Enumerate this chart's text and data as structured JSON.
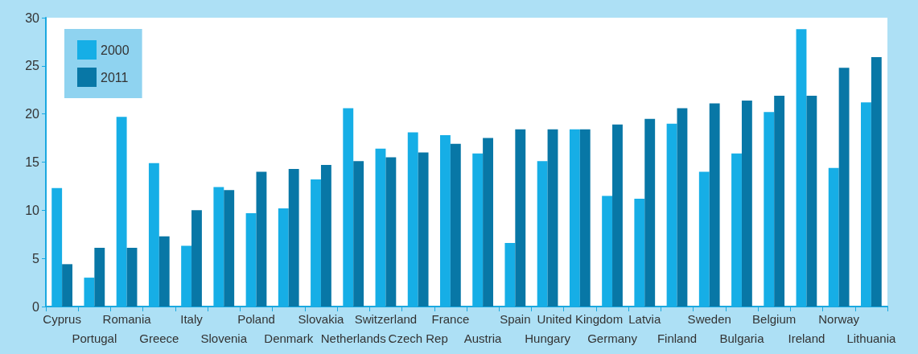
{
  "chart_data": {
    "type": "bar",
    "categories": [
      "Cyprus",
      "Portugal",
      "Romania",
      "Greece",
      "Italy",
      "Slovenia",
      "Poland",
      "Denmark",
      "Slovakia",
      "Netherlands",
      "Switzerland",
      "Czech Rep",
      "France",
      "Austria",
      "Spain",
      "Hungary",
      "United Kingdom",
      "Germany",
      "Latvia",
      "Finland",
      "Sweden",
      "Bulgaria",
      "Belgium",
      "Ireland",
      "Norway",
      "Lithuania"
    ],
    "series": [
      {
        "name": "2000",
        "color": "#16aee6",
        "values": [
          12.3,
          3.0,
          19.7,
          14.9,
          6.3,
          12.4,
          9.7,
          10.2,
          13.2,
          20.6,
          16.4,
          18.1,
          17.8,
          15.9,
          6.6,
          15.1,
          18.4,
          11.5,
          11.2,
          19.0,
          14.0,
          15.9,
          20.2,
          28.8,
          14.4,
          21.2
        ]
      },
      {
        "name": "2011",
        "color": "#0877a6",
        "values": [
          4.4,
          6.1,
          6.1,
          7.3,
          10.0,
          12.1,
          14.0,
          14.3,
          14.7,
          15.1,
          15.5,
          16.0,
          16.9,
          17.5,
          18.4,
          18.4,
          18.4,
          18.9,
          19.5,
          20.6,
          21.1,
          21.4,
          21.9,
          21.9,
          24.8,
          25.9
        ]
      }
    ],
    "ylim": [
      0,
      30
    ],
    "yticks": [
      0,
      5,
      10,
      15,
      20,
      25,
      30
    ],
    "grid": false,
    "legend": "top left"
  }
}
